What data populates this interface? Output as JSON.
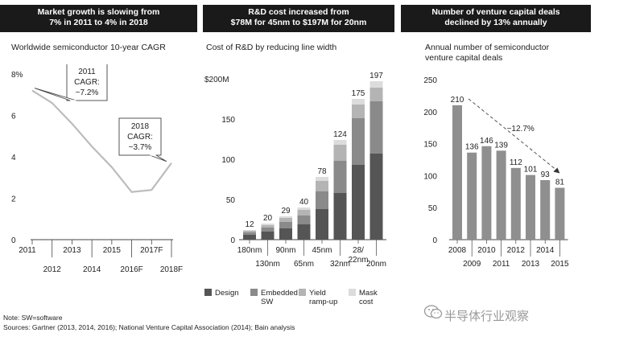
{
  "panels": [
    {
      "header_line1": "Market growth is slowing from",
      "header_line2": "7% in 2011 to 4% in 2018",
      "subtitle": "Worldwide semiconductor 10-year CAGR"
    },
    {
      "header_line1": "R&D cost increased from",
      "header_line2": "$78M for 45nm to $197M for 20nm",
      "subtitle": "Cost of R&D by reducing line width"
    },
    {
      "header_line1": "Number of venture capital deals",
      "header_line2": "declined by 13% annually",
      "subtitle_line1": "Annual number of semiconductor",
      "subtitle_line2": "venture capital deals"
    }
  ],
  "footer": {
    "note": "Note: SW=software",
    "sources": "Sources: Gartner (2013, 2014, 2016); National Venture Capital Association (2014); Bain analysis"
  },
  "watermark": "半导体行业观察",
  "chart_data": [
    {
      "type": "line",
      "x": [
        "2011",
        "2012",
        "2013",
        "2014",
        "2015",
        "2016F",
        "2017F",
        "2018F"
      ],
      "x_labels_top": [
        "2011",
        "2013",
        "2015",
        "2017F"
      ],
      "x_labels_bottom": [
        "2012",
        "2014",
        "2016F",
        "2018F"
      ],
      "values": [
        7.2,
        6.6,
        5.6,
        4.5,
        3.5,
        2.3,
        2.4,
        3.7
      ],
      "ylim": [
        0,
        8
      ],
      "yticks": [
        0,
        2,
        4,
        6,
        8
      ],
      "ytick_labels": [
        "0",
        "2",
        "4",
        "6",
        "8%"
      ],
      "annotations": [
        {
          "year": "2011",
          "line1": "2011",
          "line2": "CAGR:",
          "line3": "~7.2%"
        },
        {
          "year": "2018",
          "line1": "2018",
          "line2": "CAGR:",
          "line3": "~3.7%"
        }
      ],
      "line_color": "#bcbcbc"
    },
    {
      "type": "bar",
      "stacked": true,
      "categories": [
        "180nm",
        "130nm",
        "90nm",
        "65nm",
        "45nm",
        "32nm",
        "28/22nm",
        "20nm"
      ],
      "category_labels": [
        "180nm",
        "130nm",
        "90nm",
        "65nm",
        "45nm",
        "32nm",
        "28/\n22nm",
        "20nm"
      ],
      "totals": [
        12,
        20,
        29,
        40,
        78,
        124,
        175,
        197
      ],
      "series": [
        {
          "name": "Design",
          "color": "#555555",
          "values": [
            6,
            10,
            14,
            19,
            38,
            58,
            93,
            107
          ]
        },
        {
          "name": "Embedded SW",
          "color": "#8a8a8a",
          "values": [
            3,
            5,
            8,
            11,
            22,
            40,
            58,
            65
          ]
        },
        {
          "name": "Yield ramp-up",
          "color": "#b4b4b4",
          "values": [
            2,
            3,
            5,
            7,
            13,
            20,
            17,
            17
          ]
        },
        {
          "name": "Mask cost",
          "color": "#dcdcdc",
          "values": [
            1,
            2,
            2,
            3,
            5,
            6,
            7,
            8
          ]
        }
      ],
      "legend": [
        {
          "line1": "Design",
          "line2": ""
        },
        {
          "line1": "Embedded",
          "line2": "SW"
        },
        {
          "line1": "Yield",
          "line2": "ramp-up"
        },
        {
          "line1": "Mask",
          "line2": "cost"
        }
      ],
      "ylim": [
        0,
        200
      ],
      "yticks": [
        0,
        50,
        100,
        150,
        200
      ],
      "ytick_labels": [
        "0",
        "50",
        "100",
        "150",
        "$200M"
      ]
    },
    {
      "type": "bar",
      "categories": [
        "2008",
        "2009",
        "2010",
        "2011",
        "2012",
        "2013",
        "2014",
        "2015"
      ],
      "values": [
        210,
        136,
        146,
        139,
        112,
        101,
        93,
        81
      ],
      "ylim": [
        0,
        250
      ],
      "yticks": [
        0,
        50,
        100,
        150,
        200,
        250
      ],
      "ytick_labels": [
        "0",
        "50",
        "100",
        "150",
        "200",
        "250"
      ],
      "bar_colors": [
        "#8f8f8f",
        "#8f8f8f",
        "#8f8f8f",
        "#8f8f8f",
        "#8f8f8f",
        "#8f8f8f",
        "#8f8f8f",
        "#8f8f8f"
      ],
      "trend_label": "−12.7%"
    }
  ]
}
